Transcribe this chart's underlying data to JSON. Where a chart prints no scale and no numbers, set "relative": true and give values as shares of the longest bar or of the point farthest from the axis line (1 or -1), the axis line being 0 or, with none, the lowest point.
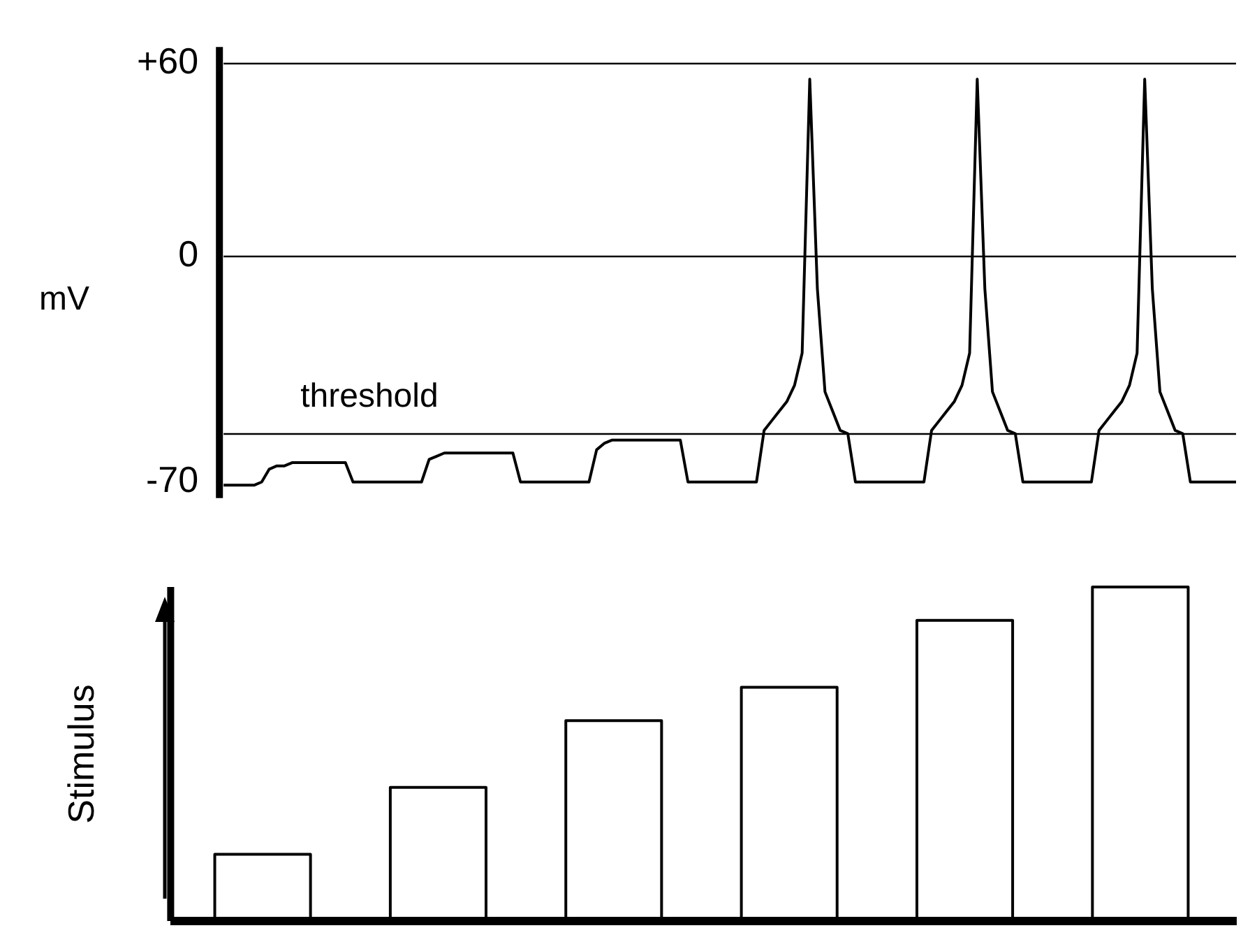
{
  "chart_data": [
    {
      "type": "line",
      "ylabel": "mV",
      "color": "#000000",
      "marker": "none",
      "tick_labels": "y",
      "grid": false,
      "categories": [
        null,
        null,
        null,
        null,
        null,
        null,
        null,
        null,
        null,
        null,
        null,
        null,
        null,
        null,
        null,
        null,
        null,
        null,
        null,
        null,
        null,
        null,
        null,
        null,
        null,
        null,
        null,
        null,
        null,
        null,
        null,
        null,
        null,
        null,
        null,
        null,
        null,
        null,
        null,
        null,
        null,
        null,
        null,
        null,
        null,
        null,
        null,
        null,
        null,
        null,
        null,
        null,
        null,
        null,
        null,
        null,
        null,
        null,
        null,
        null,
        null,
        null,
        null,
        null,
        null,
        null,
        null,
        null,
        null,
        null,
        null,
        null,
        null,
        null,
        null,
        null,
        null,
        null,
        null,
        null,
        null,
        null,
        null,
        null,
        null,
        null,
        null,
        null,
        null,
        null,
        null,
        null,
        null,
        null,
        null,
        null,
        null,
        null,
        null,
        null,
        null,
        null,
        null,
        null,
        null,
        null,
        null,
        null,
        null,
        null,
        null,
        null,
        null,
        null,
        null,
        null,
        null,
        null,
        null,
        null,
        null,
        null,
        null,
        null,
        null,
        null,
        null,
        null,
        null,
        null,
        null,
        null,
        null,
        null
      ],
      "values": [
        -71,
        -71,
        -71,
        -71,
        -71,
        -70,
        -66,
        -65,
        -65,
        -64,
        -64,
        -64,
        -64,
        -64,
        -64,
        -64,
        -64,
        -70,
        -70,
        -70,
        -70,
        -70,
        -70,
        -70,
        -70,
        -70,
        -70,
        -63,
        -62,
        -61,
        -61,
        -61,
        -61,
        -61,
        -61,
        -61,
        -61,
        -61,
        -61,
        -70,
        -70,
        -70,
        -70,
        -70,
        -70,
        -70,
        -70,
        -70,
        -70,
        -60,
        -58,
        -57,
        -57,
        -57,
        -57,
        -57,
        -57,
        -57,
        -57,
        -57,
        -57,
        -70,
        -70,
        -70,
        -70,
        -70,
        -70,
        -70,
        -70,
        -70,
        -70,
        -54,
        -51,
        -48,
        -45,
        -40,
        -30,
        55,
        -10,
        -42,
        -48,
        -54,
        -55,
        -70,
        -70,
        -70,
        -70,
        -70,
        -70,
        -70,
        -70,
        -70,
        -70,
        -54,
        -51,
        -48,
        -45,
        -40,
        -30,
        55,
        -10,
        -42,
        -48,
        -54,
        -55,
        -70,
        -70,
        -70,
        -70,
        -70,
        -70,
        -70,
        -70,
        -70,
        -70,
        -54,
        -51,
        -48,
        -45,
        -40,
        -30,
        55,
        -10,
        -42,
        -48,
        -54,
        -55,
        -70,
        -70,
        -70,
        -70,
        -70,
        -70,
        -70
      ],
      "ylim": [
        -75,
        65
      ],
      "yticks": [
        {
          "value": 60,
          "label": "+60"
        },
        0,
        -70
      ],
      "ref_lines": [
        {
          "axis": "y",
          "value": 60
        },
        {
          "axis": "y",
          "value": 0
        },
        {
          "axis": "y",
          "value": -55,
          "label": "threshold"
        }
      ]
    },
    {
      "type": "step",
      "ylabel": "Stimulus",
      "color": "#000000",
      "marker": "none",
      "tick_labels": false,
      "relative": true,
      "grid": false,
      "categories": [
        null,
        null,
        null,
        null,
        null,
        null,
        null,
        null,
        null,
        null,
        null,
        null,
        null,
        null,
        null,
        null,
        null,
        null,
        null,
        null,
        null,
        null,
        null,
        null,
        null,
        null,
        null,
        null,
        null,
        null,
        null,
        null,
        null,
        null,
        null,
        null,
        null,
        null,
        null,
        null,
        null,
        null,
        null,
        null,
        null,
        null,
        null,
        null,
        null,
        null,
        null,
        null,
        null,
        null,
        null,
        null,
        null,
        null,
        null,
        null,
        null,
        null,
        null,
        null,
        null,
        null,
        null,
        null,
        null,
        null,
        null,
        null,
        null,
        null,
        null,
        null,
        null,
        null,
        null,
        null,
        null,
        null,
        null,
        null,
        null,
        null,
        null,
        null,
        null,
        null,
        null,
        null,
        null,
        null,
        null,
        null,
        null,
        null,
        null,
        null,
        null,
        null,
        null,
        null,
        null,
        null,
        null,
        null,
        null,
        null,
        null,
        null,
        null,
        null,
        null,
        null,
        null,
        null,
        null,
        null,
        null,
        null,
        null,
        null,
        null,
        null,
        null,
        null,
        null,
        null,
        null,
        null,
        null,
        null
      ],
      "values": [
        0,
        0,
        0,
        0,
        0,
        0.2,
        0.2,
        0.2,
        0.2,
        0.2,
        0.2,
        0.2,
        0.2,
        0.2,
        0.2,
        0.2,
        0.2,
        0,
        0,
        0,
        0,
        0,
        0,
        0,
        0,
        0,
        0,
        0.4,
        0.4,
        0.4,
        0.4,
        0.4,
        0.4,
        0.4,
        0.4,
        0.4,
        0.4,
        0.4,
        0.4,
        0,
        0,
        0,
        0,
        0,
        0,
        0,
        0,
        0,
        0,
        0.6,
        0.6,
        0.6,
        0.6,
        0.6,
        0.6,
        0.6,
        0.6,
        0.6,
        0.6,
        0.6,
        0.6,
        0,
        0,
        0,
        0,
        0,
        0,
        0,
        0,
        0,
        0,
        0.7,
        0.7,
        0.7,
        0.7,
        0.7,
        0.7,
        0.7,
        0.7,
        0.7,
        0.7,
        0.7,
        0.7,
        0,
        0,
        0,
        0,
        0,
        0,
        0,
        0,
        0,
        0,
        0.9,
        0.9,
        0.9,
        0.9,
        0.9,
        0.9,
        0.9,
        0.9,
        0.9,
        0.9,
        0.9,
        0.9,
        0,
        0,
        0,
        0,
        0,
        0,
        0,
        0,
        0,
        0,
        1,
        1,
        1,
        1,
        1,
        1,
        1,
        1,
        1,
        1,
        1,
        1,
        0,
        0,
        0,
        0,
        0,
        0,
        0
      ]
    }
  ]
}
